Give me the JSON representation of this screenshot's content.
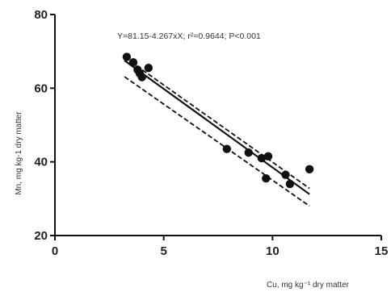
{
  "chart_data": {
    "type": "scatter",
    "xlabel": "Cu, mg kg⁻¹ dry matter",
    "ylabel": "Mn, mg kg-1 dry matter",
    "annotation": "Y=81.15-4.267xX; r²=0.9644; P<0.001",
    "xlim": [
      0,
      15
    ],
    "ylim": [
      20,
      80
    ],
    "x_ticks": [
      "0",
      "5",
      "10",
      "15"
    ],
    "y_ticks": [
      "20",
      "40",
      "60",
      "80"
    ],
    "grid": false,
    "regression": {
      "intercept": 81.15,
      "slope": -4.267
    },
    "confidence_band": {
      "x": [
        3.2,
        11.7
      ],
      "upper": [
        68.4,
        32.8
      ],
      "lower": [
        63.1,
        28.0
      ]
    },
    "points": {
      "x": [
        3.3,
        3.6,
        3.8,
        3.9,
        4.0,
        4.3,
        7.9,
        8.9,
        9.5,
        9.8,
        9.7,
        10.6,
        10.8,
        11.7
      ],
      "y": [
        68.5,
        67.0,
        65.0,
        64.0,
        63.0,
        65.5,
        43.5,
        42.5,
        41.0,
        41.5,
        35.5,
        36.5,
        34.0,
        38.0
      ]
    },
    "colors": {
      "line": "#111111",
      "point": "#111111",
      "axis": "#111111"
    }
  }
}
